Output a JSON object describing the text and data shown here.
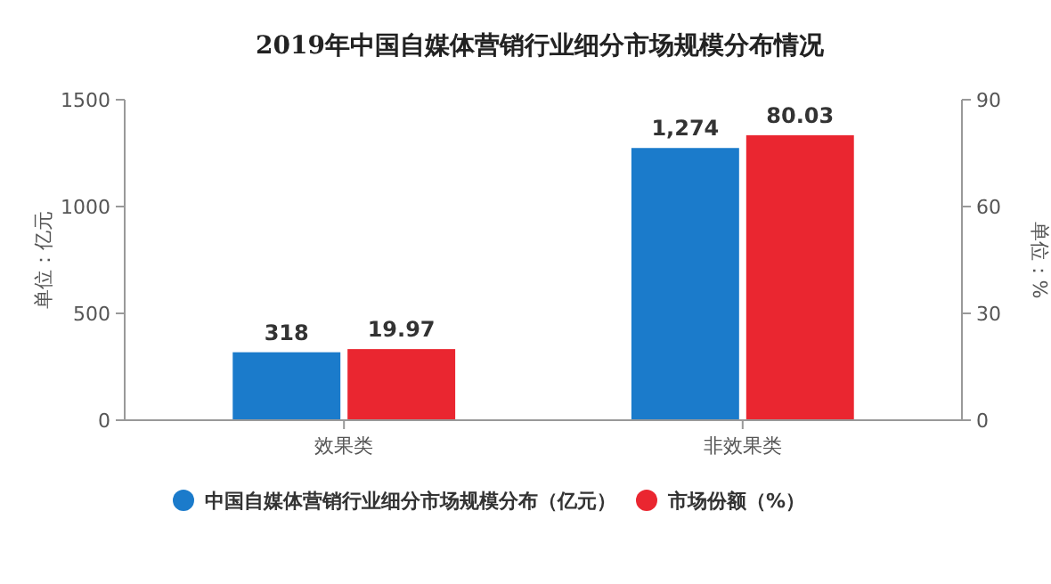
{
  "chart_data": {
    "type": "bar",
    "title": "2019年中国自媒体营销行业细分市场规模分布情况",
    "ylabel": "单位：亿元",
    "y2label": "单位：%",
    "categories": [
      "效果类",
      "非效果类"
    ],
    "series": [
      {
        "name": "中国自媒体营销行业细分市场规模分布（亿元）",
        "color": "#1b7bcb",
        "values": [
          318,
          1274
        ],
        "value_labels": [
          "318",
          "1,274"
        ]
      },
      {
        "name": "市场份额（%）",
        "color": "#ea2630",
        "values": [
          19.97,
          80.03
        ],
        "value_labels": [
          "19.97",
          "80.03"
        ],
        "axis": "y2"
      }
    ],
    "ylim": [
      0,
      1500
    ],
    "yticks": [
      0,
      500,
      1000,
      1500
    ],
    "y2lim": [
      0,
      90
    ],
    "y2ticks": [
      0,
      30,
      60,
      90
    ],
    "legend": "bottom"
  }
}
